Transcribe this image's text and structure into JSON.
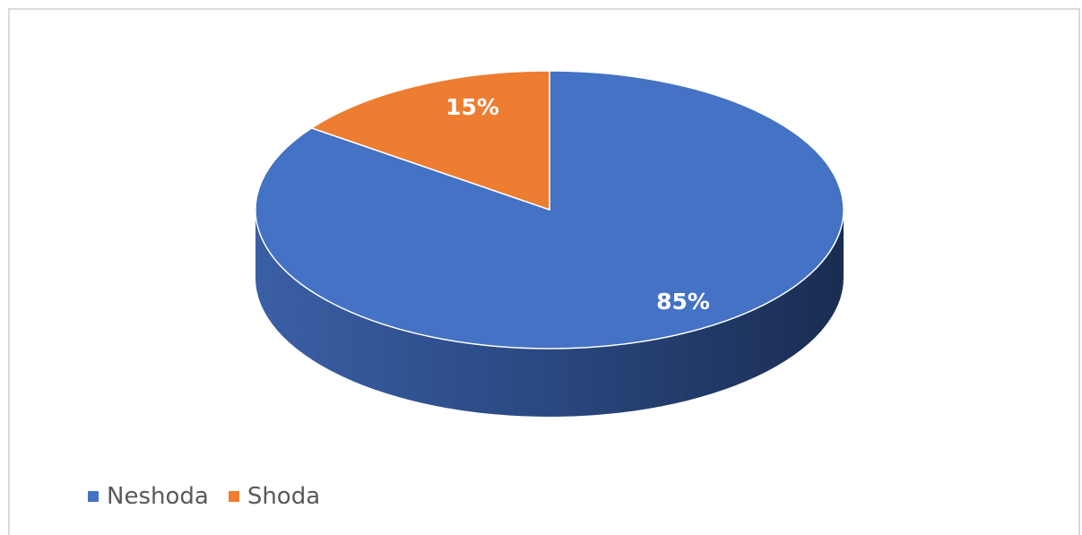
{
  "chart_data": {
    "type": "pie",
    "title": "",
    "categories": [
      "Neshoda",
      "Shoda"
    ],
    "values": [
      85,
      15
    ],
    "labels": [
      "85%",
      "15%"
    ],
    "colors": [
      "#4472c4",
      "#ed7d31"
    ],
    "legend_position": "bottom-left",
    "style": "3d"
  }
}
